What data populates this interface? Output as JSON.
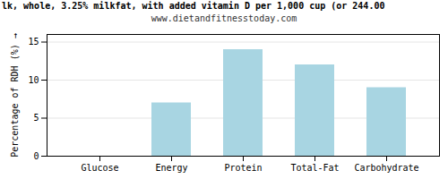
{
  "chart_data": {
    "type": "bar",
    "title": "lk, whole, 3.25% milkfat, with added vitamin D per 1,000 cup (or 244.00",
    "subtitle": "www.dietandfitnesstoday.com",
    "categories": [
      "Glucose",
      "Energy",
      "Protein",
      "Total-Fat",
      "Carbohydrate"
    ],
    "values": [
      0,
      7.0,
      14.0,
      12.0,
      9.0
    ],
    "color": "#a8d5e2",
    "ylabel": "Percentage of RDH (%)",
    "ylim": [
      0,
      16
    ],
    "yticks": [
      0,
      5,
      10,
      15
    ],
    "grid": true
  }
}
